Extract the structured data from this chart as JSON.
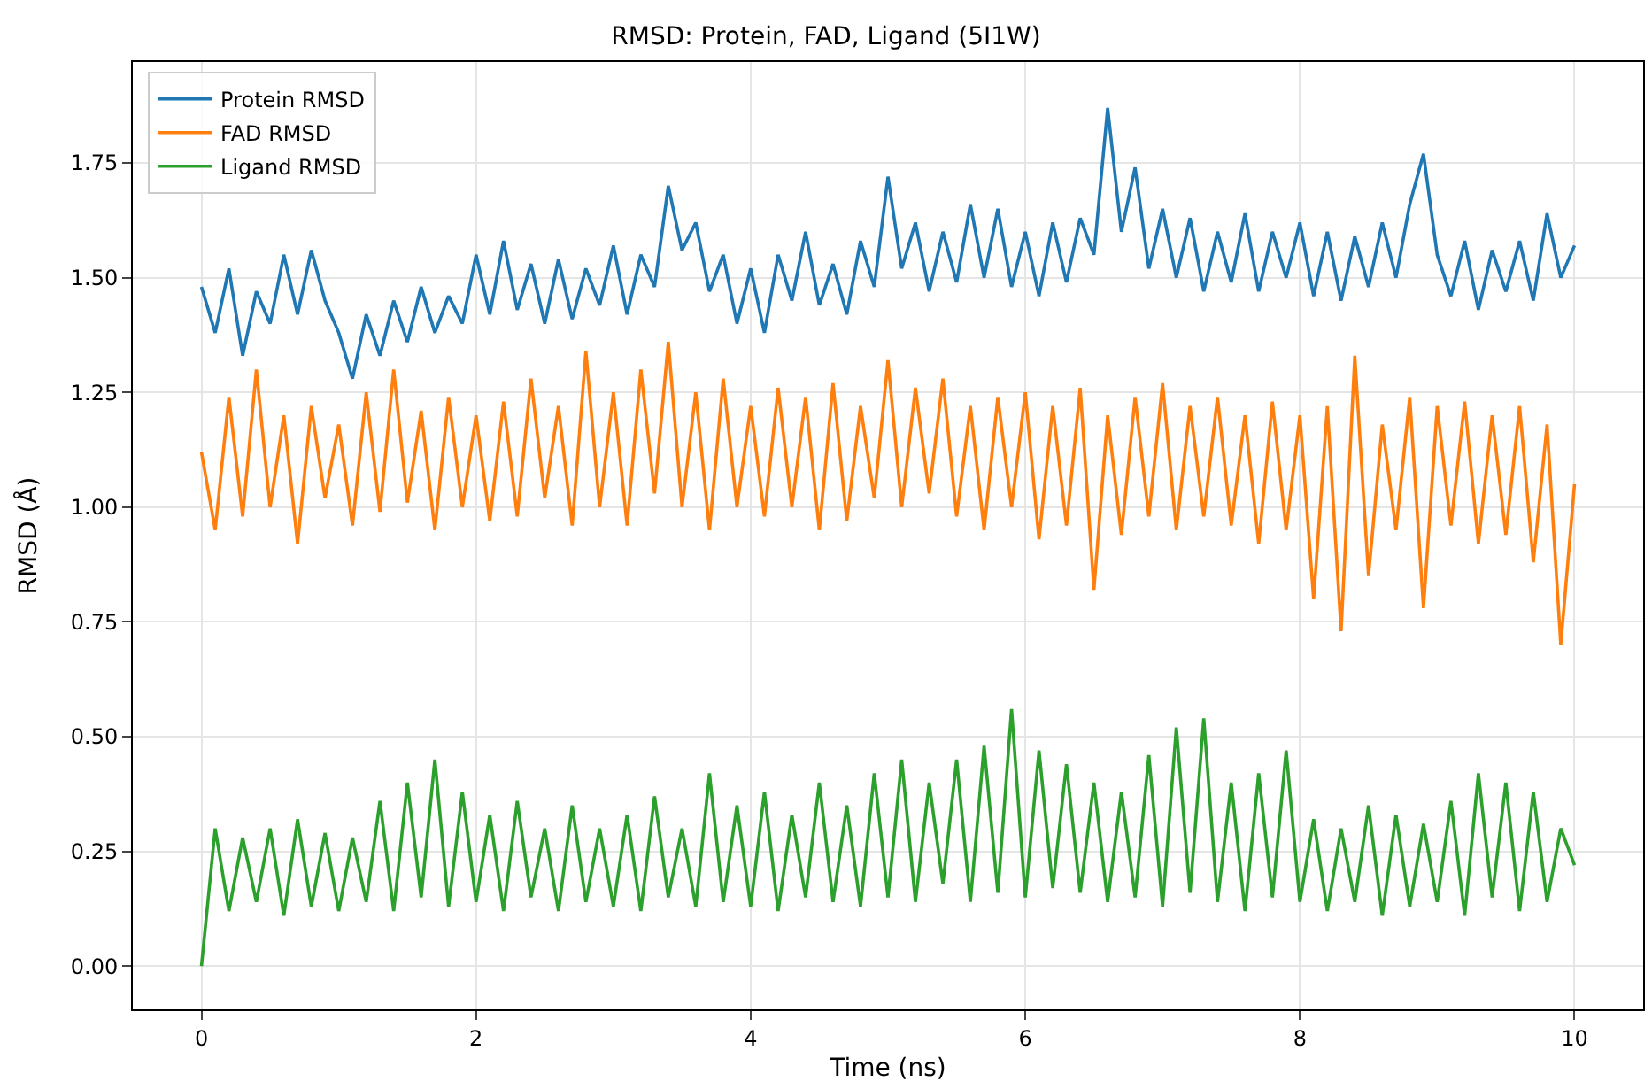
{
  "chart_data": {
    "type": "line",
    "title": "RMSD: Protein, FAD, Ligand (5I1W)",
    "xlabel": "Time (ns)",
    "ylabel": "RMSD (Å)",
    "x": [
      0,
      0.1,
      0.2,
      0.3,
      0.4,
      0.5,
      0.6,
      0.7,
      0.8,
      0.9,
      1,
      1.1,
      1.2,
      1.3,
      1.4,
      1.5,
      1.6,
      1.7,
      1.8,
      1.9,
      2,
      2.1,
      2.2,
      2.3,
      2.4,
      2.5,
      2.6,
      2.7,
      2.8,
      2.9,
      3,
      3.1,
      3.2,
      3.3,
      3.4,
      3.5,
      3.6,
      3.7,
      3.8,
      3.9,
      4,
      4.1,
      4.2,
      4.3,
      4.4,
      4.5,
      4.6,
      4.7,
      4.8,
      4.9,
      5,
      5.1,
      5.2,
      5.3,
      5.4,
      5.5,
      5.6,
      5.7,
      5.8,
      5.9,
      6,
      6.1,
      6.2,
      6.3,
      6.4,
      6.5,
      6.6,
      6.7,
      6.8,
      6.9,
      7,
      7.1,
      7.2,
      7.3,
      7.4,
      7.5,
      7.6,
      7.7,
      7.8,
      7.9,
      8,
      8.1,
      8.2,
      8.3,
      8.4,
      8.5,
      8.6,
      8.7,
      8.8,
      8.9,
      9,
      9.1,
      9.2,
      9.3,
      9.4,
      9.5,
      9.6,
      9.7,
      9.8,
      9.9,
      10
    ],
    "series": [
      {
        "name": "Protein RMSD",
        "color": "#1f77b4",
        "values": [
          1.48,
          1.38,
          1.52,
          1.33,
          1.47,
          1.4,
          1.55,
          1.42,
          1.56,
          1.45,
          1.38,
          1.28,
          1.42,
          1.33,
          1.45,
          1.36,
          1.48,
          1.38,
          1.46,
          1.4,
          1.55,
          1.42,
          1.58,
          1.43,
          1.53,
          1.4,
          1.54,
          1.41,
          1.52,
          1.44,
          1.57,
          1.42,
          1.55,
          1.48,
          1.7,
          1.56,
          1.62,
          1.47,
          1.55,
          1.4,
          1.52,
          1.38,
          1.55,
          1.45,
          1.6,
          1.44,
          1.53,
          1.42,
          1.58,
          1.48,
          1.72,
          1.52,
          1.62,
          1.47,
          1.6,
          1.49,
          1.66,
          1.5,
          1.65,
          1.48,
          1.6,
          1.46,
          1.62,
          1.49,
          1.63,
          1.55,
          1.87,
          1.6,
          1.74,
          1.52,
          1.65,
          1.5,
          1.63,
          1.47,
          1.6,
          1.49,
          1.64,
          1.47,
          1.6,
          1.5,
          1.62,
          1.46,
          1.6,
          1.45,
          1.59,
          1.48,
          1.62,
          1.5,
          1.66,
          1.77,
          1.55,
          1.46,
          1.58,
          1.43,
          1.56,
          1.47,
          1.58,
          1.45,
          1.64,
          1.5,
          1.57
        ]
      },
      {
        "name": "FAD RMSD",
        "color": "#ff7f0e",
        "values": [
          1.12,
          0.95,
          1.24,
          0.98,
          1.3,
          1.0,
          1.2,
          0.92,
          1.22,
          1.02,
          1.18,
          0.96,
          1.25,
          0.99,
          1.3,
          1.01,
          1.21,
          0.95,
          1.24,
          1.0,
          1.2,
          0.97,
          1.23,
          0.98,
          1.28,
          1.02,
          1.22,
          0.96,
          1.34,
          1.0,
          1.25,
          0.96,
          1.3,
          1.03,
          1.36,
          1.0,
          1.25,
          0.95,
          1.28,
          1.0,
          1.22,
          0.98,
          1.26,
          1.0,
          1.24,
          0.95,
          1.27,
          0.97,
          1.22,
          1.02,
          1.32,
          1.0,
          1.26,
          1.03,
          1.28,
          0.98,
          1.22,
          0.95,
          1.24,
          1.0,
          1.25,
          0.93,
          1.22,
          0.96,
          1.26,
          0.82,
          1.2,
          0.94,
          1.24,
          0.98,
          1.27,
          0.95,
          1.22,
          0.98,
          1.24,
          0.96,
          1.2,
          0.92,
          1.23,
          0.95,
          1.2,
          0.8,
          1.22,
          0.73,
          1.33,
          0.85,
          1.18,
          0.95,
          1.24,
          0.78,
          1.22,
          0.96,
          1.23,
          0.92,
          1.2,
          0.94,
          1.22,
          0.88,
          1.18,
          0.7,
          1.05
        ]
      },
      {
        "name": "Ligand RMSD",
        "color": "#2ca02c",
        "values": [
          0.0,
          0.3,
          0.12,
          0.28,
          0.14,
          0.3,
          0.11,
          0.32,
          0.13,
          0.29,
          0.12,
          0.28,
          0.14,
          0.36,
          0.12,
          0.4,
          0.15,
          0.45,
          0.13,
          0.38,
          0.14,
          0.33,
          0.12,
          0.36,
          0.15,
          0.3,
          0.12,
          0.35,
          0.14,
          0.3,
          0.13,
          0.33,
          0.12,
          0.37,
          0.15,
          0.3,
          0.13,
          0.42,
          0.14,
          0.35,
          0.13,
          0.38,
          0.12,
          0.33,
          0.15,
          0.4,
          0.14,
          0.35,
          0.13,
          0.42,
          0.15,
          0.45,
          0.14,
          0.4,
          0.18,
          0.45,
          0.14,
          0.48,
          0.16,
          0.56,
          0.15,
          0.47,
          0.17,
          0.44,
          0.16,
          0.4,
          0.14,
          0.38,
          0.15,
          0.46,
          0.13,
          0.52,
          0.16,
          0.54,
          0.14,
          0.4,
          0.12,
          0.42,
          0.15,
          0.47,
          0.14,
          0.32,
          0.12,
          0.3,
          0.14,
          0.35,
          0.11,
          0.33,
          0.13,
          0.31,
          0.14,
          0.36,
          0.11,
          0.42,
          0.15,
          0.4,
          0.12,
          0.38,
          0.14,
          0.3,
          0.22
        ]
      }
    ],
    "xlim": [
      -0.5,
      10.5
    ],
    "xticks": [
      0,
      2,
      4,
      6,
      8,
      10
    ],
    "ylim": [
      -0.094,
      1.97
    ],
    "yticks": [
      {
        "value": 0,
        "label": "0.00"
      },
      {
        "value": 0.25,
        "label": "0.25"
      },
      {
        "value": 0.5,
        "label": "0.50"
      },
      {
        "value": 0.75,
        "label": "0.75"
      },
      {
        "value": 1,
        "label": "1.00"
      },
      {
        "value": 1.25,
        "label": "1.25"
      },
      {
        "value": 1.5,
        "label": "1.50"
      },
      {
        "value": 1.75,
        "label": "1.75"
      }
    ],
    "grid": true,
    "legend": "top left",
    "line_style": "solid",
    "marker": "none"
  }
}
